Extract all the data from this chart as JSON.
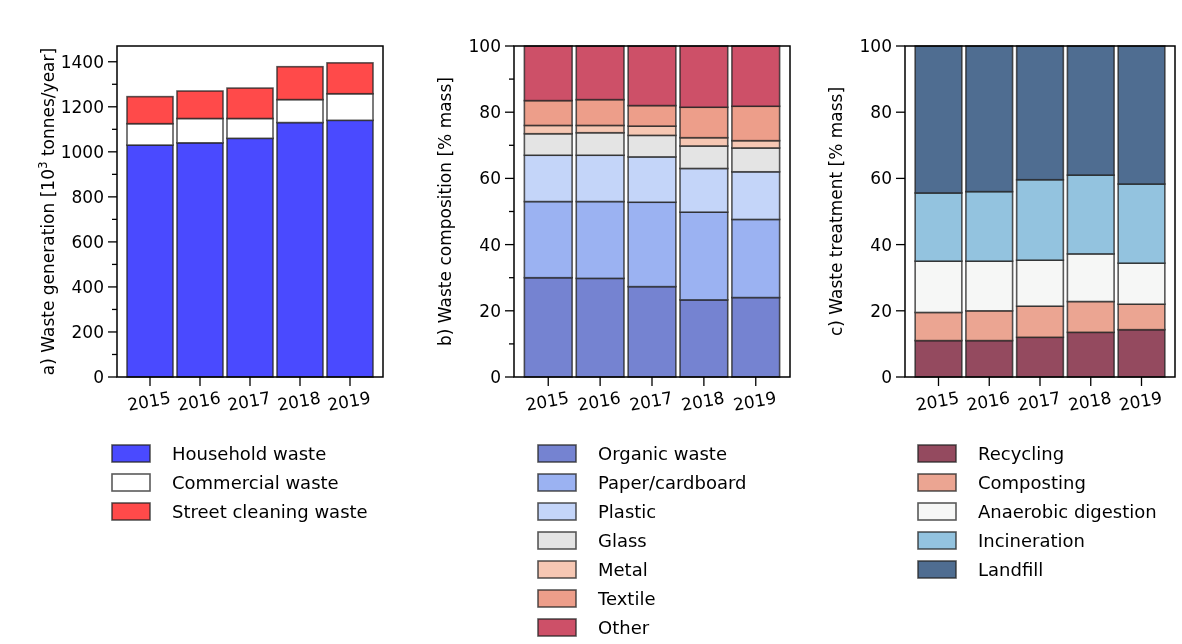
{
  "chart_data": [
    {
      "type": "bar",
      "stacked": true,
      "ylabel": "a) Waste generation [10$^{3}$ tonnes/year]",
      "categories": [
        "2015",
        "2016",
        "2017",
        "2018",
        "2019"
      ],
      "legend": "bottom",
      "ylim": [
        0,
        1470
      ],
      "yticks": [
        0,
        {
          "value": 100,
          "label": null
        },
        200,
        {
          "value": 300,
          "label": null
        },
        400,
        {
          "value": 500,
          "label": null
        },
        600,
        {
          "value": 700,
          "label": null
        },
        800,
        {
          "value": 900,
          "label": null
        },
        1000,
        {
          "value": 1100,
          "label": null
        },
        1200,
        {
          "value": 1300,
          "label": null
        },
        1400
      ],
      "series": [
        {
          "name": "Household waste",
          "color": "#4a4aff",
          "values": [
            1030,
            1040,
            1060,
            1130,
            1140
          ]
        },
        {
          "name": "Commercial waste",
          "color": "#ffffff",
          "values": [
            95,
            108,
            88,
            102,
            118
          ]
        },
        {
          "name": "Street cleaning waste",
          "color": "#ff4a4a",
          "values": [
            120,
            122,
            135,
            146,
            137
          ]
        }
      ]
    },
    {
      "type": "bar",
      "stacked": true,
      "ylabel": "b) Waste composition [% mass]",
      "categories": [
        "2015",
        "2016",
        "2017",
        "2018",
        "2019"
      ],
      "legend": "bottom",
      "ylim": [
        0,
        100
      ],
      "yticks": [
        0,
        {
          "value": 10,
          "label": null
        },
        20,
        {
          "value": 30,
          "label": null
        },
        40,
        {
          "value": 50,
          "label": null
        },
        60,
        {
          "value": 70,
          "label": null
        },
        80,
        {
          "value": 90,
          "label": null
        },
        100
      ],
      "series": [
        {
          "name": "Organic waste",
          "color": "#7583d1",
          "values": [
            30,
            29.8,
            27.3,
            23.3,
            24
          ]
        },
        {
          "name": "Paper/cardboard",
          "color": "#9bb2f2",
          "values": [
            23,
            23.2,
            25.5,
            26.5,
            23.6
          ]
        },
        {
          "name": "Plastic",
          "color": "#c4d5f9",
          "values": [
            14,
            14,
            13.7,
            13.2,
            14.4
          ]
        },
        {
          "name": "Glass",
          "color": "#e4e4e4",
          "values": [
            6.5,
            6.8,
            6.5,
            6.8,
            7.2
          ]
        },
        {
          "name": "Metal",
          "color": "#f6c7b3",
          "values": [
            2.5,
            2.2,
            2.8,
            2.5,
            2.2
          ]
        },
        {
          "name": "Textile",
          "color": "#ed9e8a",
          "values": [
            7.5,
            7.8,
            6.2,
            9.2,
            10.4
          ]
        },
        {
          "name": "Other",
          "color": "#cd5068",
          "values": [
            16.5,
            16.2,
            18,
            18.5,
            18.2
          ]
        }
      ]
    },
    {
      "type": "bar",
      "stacked": true,
      "ylabel": "c) Waste treatment [% mass]",
      "categories": [
        "2015",
        "2016",
        "2017",
        "2018",
        "2019"
      ],
      "legend": "bottom",
      "ylim": [
        0,
        100
      ],
      "yticks": [
        0,
        20,
        40,
        60,
        80,
        100
      ],
      "series": [
        {
          "name": "Recycling",
          "color": "#944a5f",
          "values": [
            11,
            11,
            12,
            13.5,
            14.3
          ]
        },
        {
          "name": "Composting",
          "color": "#eba592",
          "values": [
            8.5,
            9,
            9.4,
            9.3,
            7.7
          ]
        },
        {
          "name": "Anaerobic digestion",
          "color": "#f6f7f6",
          "values": [
            15.5,
            15,
            13.9,
            14.4,
            12.4
          ]
        },
        {
          "name": "Incineration",
          "color": "#93c3df",
          "values": [
            20.6,
            21,
            24.3,
            23.8,
            23.9
          ]
        },
        {
          "name": "Landfill",
          "color": "#4f6d91",
          "values": [
            44.4,
            44,
            40.4,
            39,
            41.7
          ]
        }
      ]
    }
  ]
}
